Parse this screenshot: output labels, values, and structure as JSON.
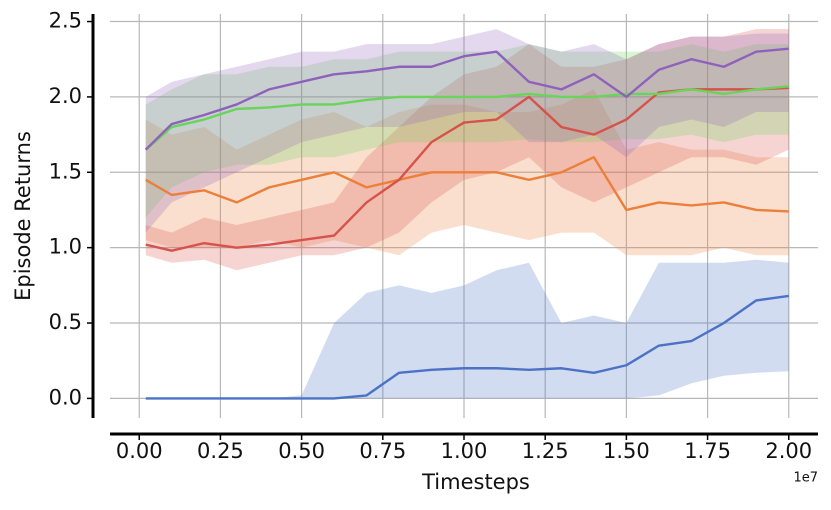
{
  "chart_data": {
    "type": "line",
    "xlabel": "Timesteps",
    "ylabel": "Episode Returns",
    "x_offset_label": "1e7",
    "x": [
      0.02,
      0.1,
      0.2,
      0.3,
      0.4,
      0.5,
      0.6,
      0.7,
      0.8,
      0.9,
      1.0,
      1.1,
      1.2,
      1.3,
      1.4,
      1.5,
      1.6,
      1.7,
      1.8,
      1.9,
      2.0
    ],
    "series": [
      {
        "color": "#4c72c6",
        "values": [
          0,
          0,
          0,
          0,
          0,
          0,
          0,
          0.02,
          0.17,
          0.19,
          0.2,
          0.2,
          0.19,
          0.2,
          0.17,
          0.22,
          0.35,
          0.38,
          0.5,
          0.65,
          0.68
        ],
        "lower": [
          0,
          0,
          0,
          0,
          0,
          0,
          0,
          0,
          0,
          0,
          0,
          0,
          0,
          0,
          0,
          0,
          0.02,
          0.1,
          0.15,
          0.17,
          0.18
        ],
        "upper": [
          0,
          0,
          0,
          0,
          0,
          0.02,
          0.5,
          0.7,
          0.75,
          0.7,
          0.75,
          0.85,
          0.9,
          0.5,
          0.55,
          0.5,
          0.9,
          0.9,
          0.9,
          0.92,
          0.9
        ]
      },
      {
        "color": "#ec7f3a",
        "values": [
          1.45,
          1.35,
          1.38,
          1.3,
          1.4,
          1.45,
          1.5,
          1.4,
          1.45,
          1.5,
          1.5,
          1.5,
          1.45,
          1.5,
          1.6,
          1.25,
          1.3,
          1.28,
          1.3,
          1.25,
          1.24
        ],
        "lower": [
          1.05,
          1.0,
          1.0,
          1.0,
          1.05,
          1.0,
          1.05,
          1.0,
          0.95,
          1.1,
          1.15,
          1.1,
          1.05,
          1.1,
          1.1,
          0.95,
          0.95,
          0.95,
          1.0,
          0.95,
          0.95
        ],
        "upper": [
          1.85,
          1.75,
          1.8,
          1.65,
          1.75,
          1.85,
          1.9,
          1.8,
          1.9,
          1.95,
          1.95,
          1.9,
          1.9,
          1.95,
          2.05,
          1.65,
          1.7,
          1.65,
          1.65,
          1.6,
          1.6
        ]
      },
      {
        "color": "#d6524a",
        "values": [
          1.02,
          0.98,
          1.03,
          1.0,
          1.02,
          1.05,
          1.08,
          1.3,
          1.45,
          1.7,
          1.83,
          1.85,
          2.0,
          1.8,
          1.75,
          1.85,
          2.03,
          2.05,
          2.05,
          2.05,
          2.06
        ],
        "lower": [
          0.95,
          0.9,
          0.92,
          0.85,
          0.9,
          0.95,
          0.95,
          1.0,
          1.1,
          1.3,
          1.45,
          1.5,
          1.6,
          1.4,
          1.3,
          1.4,
          1.5,
          1.6,
          1.6,
          1.55,
          1.65
        ],
        "upper": [
          1.15,
          1.1,
          1.2,
          1.15,
          1.2,
          1.25,
          1.3,
          1.6,
          1.8,
          2.0,
          2.15,
          2.2,
          2.35,
          2.2,
          2.2,
          2.25,
          2.35,
          2.4,
          2.4,
          2.45,
          2.45
        ]
      },
      {
        "color": "#6ad45a",
        "values": [
          1.65,
          1.8,
          1.85,
          1.92,
          1.93,
          1.95,
          1.95,
          1.98,
          2.0,
          2.0,
          2.0,
          2.0,
          2.02,
          2.0,
          2.0,
          2.02,
          2.02,
          2.05,
          2.02,
          2.05,
          2.07
        ],
        "lower": [
          1.2,
          1.4,
          1.5,
          1.55,
          1.55,
          1.6,
          1.6,
          1.65,
          1.7,
          1.7,
          1.7,
          1.7,
          1.72,
          1.7,
          1.7,
          1.72,
          1.72,
          1.75,
          1.7,
          1.75,
          1.75
        ],
        "upper": [
          1.95,
          2.05,
          2.15,
          2.15,
          2.2,
          2.2,
          2.25,
          2.25,
          2.3,
          2.3,
          2.3,
          2.3,
          2.35,
          2.3,
          2.3,
          2.3,
          2.3,
          2.35,
          2.3,
          2.35,
          2.35
        ]
      },
      {
        "color": "#8e62bc",
        "values": [
          1.65,
          1.82,
          1.88,
          1.95,
          2.05,
          2.1,
          2.15,
          2.17,
          2.2,
          2.2,
          2.27,
          2.3,
          2.1,
          2.05,
          2.15,
          2.0,
          2.18,
          2.25,
          2.2,
          2.3,
          2.32
        ],
        "lower": [
          1.1,
          1.3,
          1.4,
          1.5,
          1.6,
          1.7,
          1.75,
          1.8,
          1.8,
          1.85,
          1.9,
          1.9,
          1.7,
          1.7,
          1.75,
          1.6,
          1.8,
          1.85,
          1.8,
          1.9,
          1.9
        ],
        "upper": [
          2.0,
          2.1,
          2.15,
          2.2,
          2.25,
          2.3,
          2.3,
          2.35,
          2.35,
          2.35,
          2.4,
          2.45,
          2.35,
          2.3,
          2.35,
          2.25,
          2.35,
          2.4,
          2.4,
          2.42,
          2.42
        ]
      }
    ],
    "band_opacity": 0.25,
    "xlim": [
      -0.09,
      2.09
    ],
    "ylim": [
      -0.13,
      2.55
    ],
    "xticks": [
      {
        "value": 0,
        "label": "0.00"
      },
      0.25,
      {
        "value": 0.5,
        "label": "0.50"
      },
      0.75,
      {
        "value": 1,
        "label": "1.00"
      },
      1.25,
      {
        "value": 1.5,
        "label": "1.50"
      },
      1.75,
      {
        "value": 2,
        "label": "2.00"
      }
    ],
    "yticks": [
      {
        "value": 0,
        "label": "0.0"
      },
      0.5,
      {
        "value": 1,
        "label": "1.0"
      },
      1.5,
      {
        "value": 2,
        "label": "2.0"
      },
      2.5
    ],
    "grid": true
  }
}
